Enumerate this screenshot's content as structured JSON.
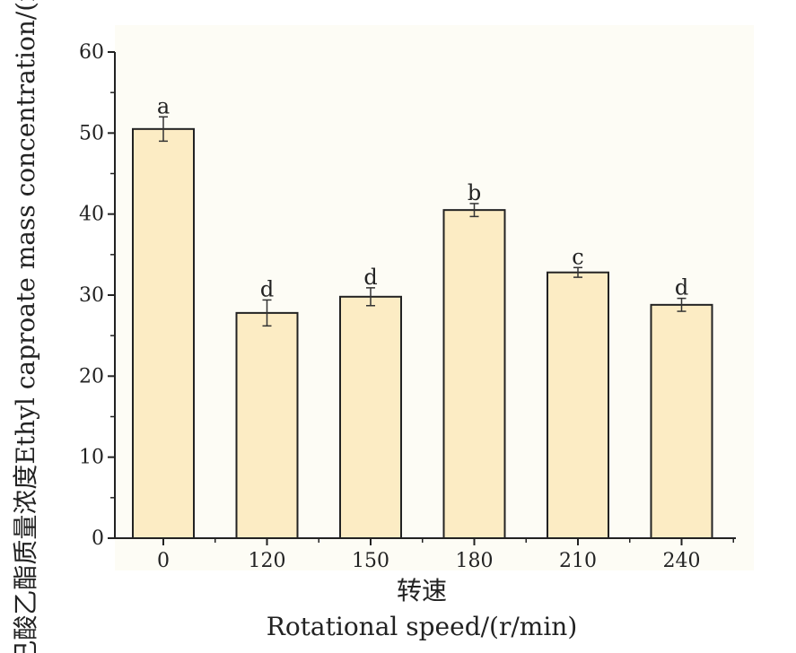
{
  "chart_data": {
    "type": "bar",
    "categories": [
      "0",
      "120",
      "150",
      "180",
      "210",
      "240"
    ],
    "values": [
      50.5,
      27.8,
      29.8,
      40.5,
      32.8,
      28.8
    ],
    "errors": [
      1.5,
      1.6,
      1.1,
      0.8,
      0.6,
      0.8
    ],
    "significance_labels": [
      "a",
      "d",
      "d",
      "b",
      "c",
      "d"
    ],
    "xlabel_cn": "转速",
    "xlabel_en": "Rotational speed/(r/min)",
    "ylabel": "己酸乙酯质量浓度Ethyl caproate mass concentration/(mg/L)",
    "ylim": [
      0,
      60
    ],
    "yticks": [
      0,
      10,
      20,
      30,
      40,
      50,
      60
    ],
    "grid": false,
    "colors": {
      "bar_fill": "#fcecc4",
      "bar_stroke": "#222222",
      "plot_bg": "#fdfcf5",
      "axis": "#222222"
    }
  }
}
